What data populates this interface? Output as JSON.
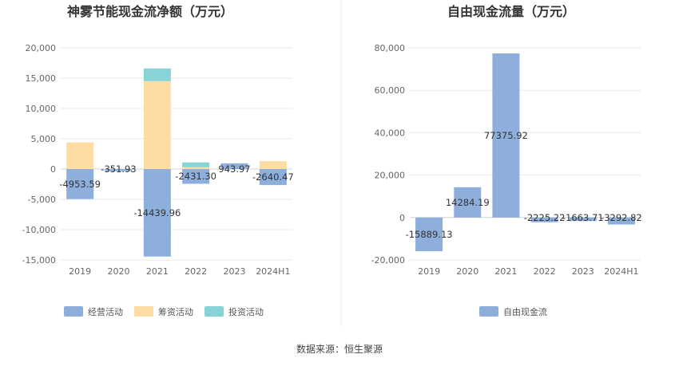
{
  "source": "数据来源：恒生聚源",
  "chart_data": [
    {
      "type": "bar",
      "stacked": true,
      "title": "神雾节能现金流净额（万元）",
      "categories": [
        "2019",
        "2020",
        "2021",
        "2022",
        "2023",
        "2024H1"
      ],
      "ylim": [
        -15000,
        20000
      ],
      "yticks": [
        20000,
        15000,
        10000,
        5000,
        0,
        -5000,
        -10000,
        -15000
      ],
      "ytick_labels": [
        "20,000",
        "15,000",
        "10,000",
        "5,000",
        "0",
        "-5,000",
        "-10,000",
        "-15,000"
      ],
      "series": [
        {
          "name": "经营活动",
          "color": "#8eaedc",
          "values": [
            -4953.59,
            -351.93,
            -14439.96,
            -2431.3,
            943.97,
            -2640.47
          ]
        },
        {
          "name": "筹资活动",
          "color": "#fddda3",
          "values": [
            4400,
            0,
            14500,
            300,
            0,
            1300
          ]
        },
        {
          "name": "投资活动",
          "color": "#88d3d6",
          "values": [
            0,
            0,
            2100,
            800,
            0,
            0
          ]
        }
      ],
      "data_labels": [
        "-4953.59",
        "-351.93",
        "-14439.96",
        "-2431.30",
        "943.97",
        "-2640.47"
      ],
      "legend": [
        "经营活动",
        "筹资活动",
        "投资活动"
      ]
    },
    {
      "type": "bar",
      "title": "自由现金流量（万元）",
      "categories": [
        "2019",
        "2020",
        "2021",
        "2022",
        "2023",
        "2024H1"
      ],
      "ylim": [
        -20000,
        80000
      ],
      "yticks": [
        80000,
        60000,
        40000,
        20000,
        0,
        -20000
      ],
      "ytick_labels": [
        "80,000",
        "60,000",
        "40,000",
        "20,000",
        "0",
        "-20,000"
      ],
      "series": [
        {
          "name": "自由现金流",
          "color": "#8eaedc",
          "values": [
            -15889.13,
            14284.19,
            77375.92,
            -2225.22,
            -1663.71,
            -3292.82
          ]
        }
      ],
      "data_labels": [
        "-15889.13",
        "14284.19",
        "77375.92",
        "-2225.22",
        "-1663.71",
        "-3292.82"
      ],
      "legend": [
        "自由现金流"
      ]
    }
  ]
}
